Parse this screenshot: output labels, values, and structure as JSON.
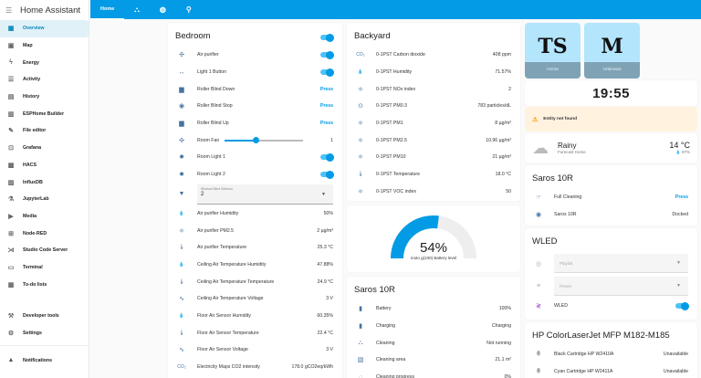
{
  "app": {
    "title": "Home Assistant"
  },
  "sidebar": {
    "items": [
      {
        "label": "Overview",
        "icon": "view-dashboard-icon",
        "glyph": "▦",
        "active": true
      },
      {
        "label": "Map",
        "icon": "map-icon",
        "glyph": "▣"
      },
      {
        "label": "Energy",
        "icon": "lightning-icon",
        "glyph": "ϟ"
      },
      {
        "label": "Activity",
        "icon": "activity-list-icon",
        "glyph": "☰"
      },
      {
        "label": "History",
        "icon": "history-chart-icon",
        "glyph": "▤"
      },
      {
        "label": "ESPHome Builder",
        "icon": "esphome-icon",
        "glyph": "▥"
      },
      {
        "label": "File editor",
        "icon": "wrench-icon",
        "glyph": "✎"
      },
      {
        "label": "Grafana",
        "icon": "grafana-chart-icon",
        "glyph": "⊡"
      },
      {
        "label": "HACS",
        "icon": "hacs-store-icon",
        "glyph": "▩"
      },
      {
        "label": "InfluxDB",
        "icon": "influxdb-chart-icon",
        "glyph": "▨"
      },
      {
        "label": "JupyterLab",
        "icon": "flask-icon",
        "glyph": "⚗"
      },
      {
        "label": "Media",
        "icon": "media-icon",
        "glyph": "▶"
      },
      {
        "label": "Node-RED",
        "icon": "sitemap-icon",
        "glyph": "⊞"
      },
      {
        "label": "Studio Code Server",
        "icon": "vscode-icon",
        "glyph": "⋊"
      },
      {
        "label": "Terminal",
        "icon": "terminal-icon",
        "glyph": "▭"
      },
      {
        "label": "To-do lists",
        "icon": "clipboard-list-icon",
        "glyph": "▦"
      }
    ],
    "bottom_items": [
      {
        "label": "Developer tools",
        "icon": "hammer-icon",
        "glyph": "⚒"
      },
      {
        "label": "Settings",
        "icon": "cog-icon",
        "glyph": "⚙"
      }
    ],
    "notifications": {
      "label": "Notifications",
      "icon": "bell-icon",
      "glyph": "🔔"
    }
  },
  "topbar": {
    "tabs": [
      {
        "label": "Home",
        "active": true
      },
      {
        "icon": "robot-vacuum-icon",
        "glyph": "⛬"
      },
      {
        "icon": "web-icon",
        "glyph": "◍"
      },
      {
        "icon": "lightbulb-icon",
        "glyph": "⚲"
      }
    ]
  },
  "bedroom": {
    "title": "Bedroom",
    "rows": [
      {
        "name": "Air purifier",
        "type": "toggle",
        "icon": "fan-icon",
        "glyph": "✣"
      },
      {
        "name": "Light 1 Button",
        "type": "toggle",
        "icon": "button-icon",
        "glyph": "↔"
      },
      {
        "name": "Roller Blind Down",
        "type": "press",
        "value": "Press",
        "icon": "blind-down-icon",
        "glyph": "▆"
      },
      {
        "name": "Roller Blind Stop",
        "type": "press",
        "value": "Press",
        "icon": "stop-circle-icon",
        "glyph": "◉"
      },
      {
        "name": "Roller Blind Up",
        "type": "press",
        "value": "Press",
        "icon": "blind-up-icon",
        "glyph": "▆"
      },
      {
        "name": "Room Fan",
        "type": "slider",
        "value": "1",
        "icon": "fan-icon",
        "glyph": "✣"
      },
      {
        "name": "Room Light 1",
        "type": "toggle",
        "icon": "lightbulb-icon",
        "glyph": "✹"
      },
      {
        "name": "Room Light 2",
        "type": "toggle",
        "icon": "lightbulb-icon",
        "glyph": "✹"
      }
    ],
    "select": {
      "label": "Window Blind Selector",
      "value": "2",
      "icon": "blind-icon",
      "glyph": "▼"
    },
    "sensors": [
      {
        "name": "Air purifier Humidity",
        "value": "50%",
        "icon": "water-percent-icon",
        "glyph": "💧"
      },
      {
        "name": "Air purifier PM2.5",
        "value": "2 µg/m³",
        "icon": "molecule-icon",
        "glyph": "⚛"
      },
      {
        "name": "Air purifier Temperature",
        "value": "25.3 °C",
        "icon": "thermometer-icon",
        "glyph": "🌡"
      },
      {
        "name": "Ceiling Air Temperature Humidity",
        "value": "47.88%",
        "icon": "water-percent-icon",
        "glyph": "💧"
      },
      {
        "name": "Ceiling Air Temperature Temperature",
        "value": "24.9 °C",
        "icon": "thermometer-icon",
        "glyph": "🌡"
      },
      {
        "name": "Ceiling Air Temperature Voltage",
        "value": "3 V",
        "icon": "sine-wave-icon",
        "glyph": "∿"
      },
      {
        "name": "Floor Air Sensor Humidity",
        "value": "60.35%",
        "icon": "water-percent-icon",
        "glyph": "💧"
      },
      {
        "name": "Floor Air Sensor Temperature",
        "value": "22.4 °C",
        "icon": "thermometer-icon",
        "glyph": "🌡"
      },
      {
        "name": "Floor Air Sensor Voltage",
        "value": "3 V",
        "icon": "sine-wave-icon",
        "glyph": "∿"
      },
      {
        "name": "Electricity Maps CO2 intensity",
        "value": "178.0 gCO2eq/kWh",
        "icon": "co2-icon",
        "glyph": "CO₂"
      }
    ]
  },
  "backyard": {
    "title": "Backyard",
    "rows": [
      {
        "name": "0-1PST Carbon dioxide",
        "value": "408 ppm",
        "icon": "co2-icon",
        "glyph": "CO₂"
      },
      {
        "name": "0-1PST Humidity",
        "value": "71.57%",
        "icon": "water-percent-icon",
        "glyph": "💧"
      },
      {
        "name": "0-1PST NOx index",
        "value": "2",
        "icon": "molecule-icon",
        "glyph": "⚛"
      },
      {
        "name": "0-1PST PM0.3",
        "value": "783 particles/dL",
        "icon": "eye-icon",
        "glyph": "⊙"
      },
      {
        "name": "0-1PST PM1",
        "value": "8 µg/m³",
        "icon": "molecule-icon",
        "glyph": "⚛"
      },
      {
        "name": "0-1PST PM2.5",
        "value": "10.96 µg/m³",
        "icon": "molecule-icon",
        "glyph": "⚛"
      },
      {
        "name": "0-1PST PM10",
        "value": "21 µg/m³",
        "icon": "molecule-icon",
        "glyph": "⚛"
      },
      {
        "name": "0-1PST Temperature",
        "value": "18.0 °C",
        "icon": "thermometer-icon",
        "glyph": "🌡"
      },
      {
        "name": "0-1PST VOC index",
        "value": "50",
        "icon": "molecule-icon",
        "glyph": "⚛"
      }
    ]
  },
  "gauge": {
    "percent": "54%",
    "value": 54,
    "label": "moto g(100) Battery level",
    "color": "#039be5"
  },
  "saros_main": {
    "title": "Saros 10R",
    "rows": [
      {
        "name": "Battery",
        "value": "100%",
        "icon": "battery-icon",
        "glyph": "▮"
      },
      {
        "name": "Charging",
        "value": "Charging",
        "icon": "battery-charging-icon",
        "glyph": "▮"
      },
      {
        "name": "Cleaning",
        "value": "Not running",
        "icon": "robot-vacuum-icon",
        "glyph": "⛬"
      },
      {
        "name": "Cleaning area",
        "value": "21.1 m²",
        "icon": "texture-box-icon",
        "glyph": "▧"
      },
      {
        "name": "Cleaning progress",
        "value": "0%",
        "icon": "progress-clock-icon",
        "glyph": "◌"
      }
    ]
  },
  "persons": [
    {
      "initials": "TS",
      "status": "Home"
    },
    {
      "initials": "M",
      "status": "Unknown"
    }
  ],
  "clock": {
    "time": "19:55"
  },
  "warning": {
    "text": "Entity not found"
  },
  "weather": {
    "condition": "Rainy",
    "subtitle": "Forecast Home",
    "temperature": "14 °C",
    "humidity": "97%"
  },
  "saros_side": {
    "title": "Saros 10R",
    "rows": [
      {
        "name": "Full Cleaning",
        "value": "Press",
        "type": "press",
        "icon": "gesture-tap-icon",
        "glyph": "☞"
      },
      {
        "name": "Saros 10R",
        "value": "Docked",
        "icon": "robot-vacuum-icon",
        "glyph": "◉"
      }
    ]
  },
  "wled": {
    "title": "WLED",
    "playlist": {
      "placeholder": "Playlist"
    },
    "preset": {
      "placeholder": "Preset"
    },
    "light": {
      "name": "WLED"
    }
  },
  "printer": {
    "title": "HP ColorLaserJet MFP M182-M185",
    "rows": [
      {
        "name": "Black Cartridge HP W2410A",
        "value": "Unavailable"
      },
      {
        "name": "Cyan Cartridge HP W2411A",
        "value": "Unavailable"
      }
    ]
  }
}
